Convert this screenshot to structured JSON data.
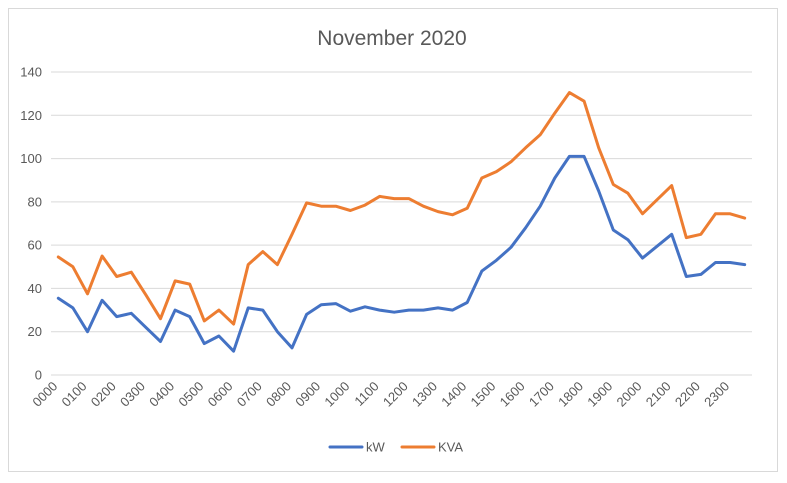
{
  "chart_data": {
    "type": "line",
    "title": "November 2020",
    "xlabel": "",
    "ylabel": "",
    "ylim": [
      0,
      140
    ],
    "yticks": [
      0,
      20,
      40,
      60,
      80,
      100,
      120,
      140
    ],
    "grid": true,
    "legend_position": "bottom",
    "x": [
      "0000",
      "0030",
      "0100",
      "0130",
      "0200",
      "0230",
      "0300",
      "0330",
      "0400",
      "0430",
      "0500",
      "0530",
      "0600",
      "0630",
      "0700",
      "0730",
      "0800",
      "0830",
      "0900",
      "0930",
      "1000",
      "1030",
      "1100",
      "1130",
      "1200",
      "1230",
      "1300",
      "1330",
      "1400",
      "1430",
      "1500",
      "1530",
      "1600",
      "1630",
      "1700",
      "1730",
      "1800",
      "1830",
      "1900",
      "1930",
      "2000",
      "2030",
      "2100",
      "2130",
      "2200",
      "2230",
      "2300",
      "2330"
    ],
    "x_tick_labels": [
      "0000",
      "0100",
      "0200",
      "0300",
      "0400",
      "0500",
      "0600",
      "0700",
      "0800",
      "0900",
      "1000",
      "1100",
      "1200",
      "1300",
      "1400",
      "1500",
      "1600",
      "1700",
      "1800",
      "1900",
      "2000",
      "2100",
      "2200",
      "2300"
    ],
    "series": [
      {
        "name": "kW",
        "color": "#4472c4",
        "values": [
          35.5,
          31,
          20,
          34.5,
          27,
          28.5,
          22,
          15.5,
          30,
          27,
          14.5,
          18,
          11,
          31,
          30,
          20,
          12.5,
          28,
          32.5,
          33,
          29.5,
          31.5,
          30,
          29,
          30,
          30,
          31,
          30,
          33.5,
          48,
          53,
          59,
          68,
          78,
          91,
          101,
          101,
          85,
          67,
          62.5,
          54,
          59.5,
          65,
          45.5,
          46.5,
          52,
          52,
          51
        ]
      },
      {
        "name": "KVA",
        "color": "#ed7d31",
        "values": [
          54.5,
          50,
          37.5,
          55,
          45.5,
          47.5,
          37,
          26,
          43.5,
          42,
          25,
          30,
          23.5,
          51,
          57,
          51,
          65,
          79.5,
          78,
          78,
          76,
          78.5,
          82.5,
          81.5,
          81.5,
          78,
          75.5,
          74,
          77,
          91,
          94,
          98.5,
          105,
          111,
          121,
          130.5,
          126.5,
          105,
          88,
          84,
          74.5,
          81,
          87.5,
          63.5,
          65,
          74.5,
          74.5,
          72.5
        ]
      }
    ]
  }
}
